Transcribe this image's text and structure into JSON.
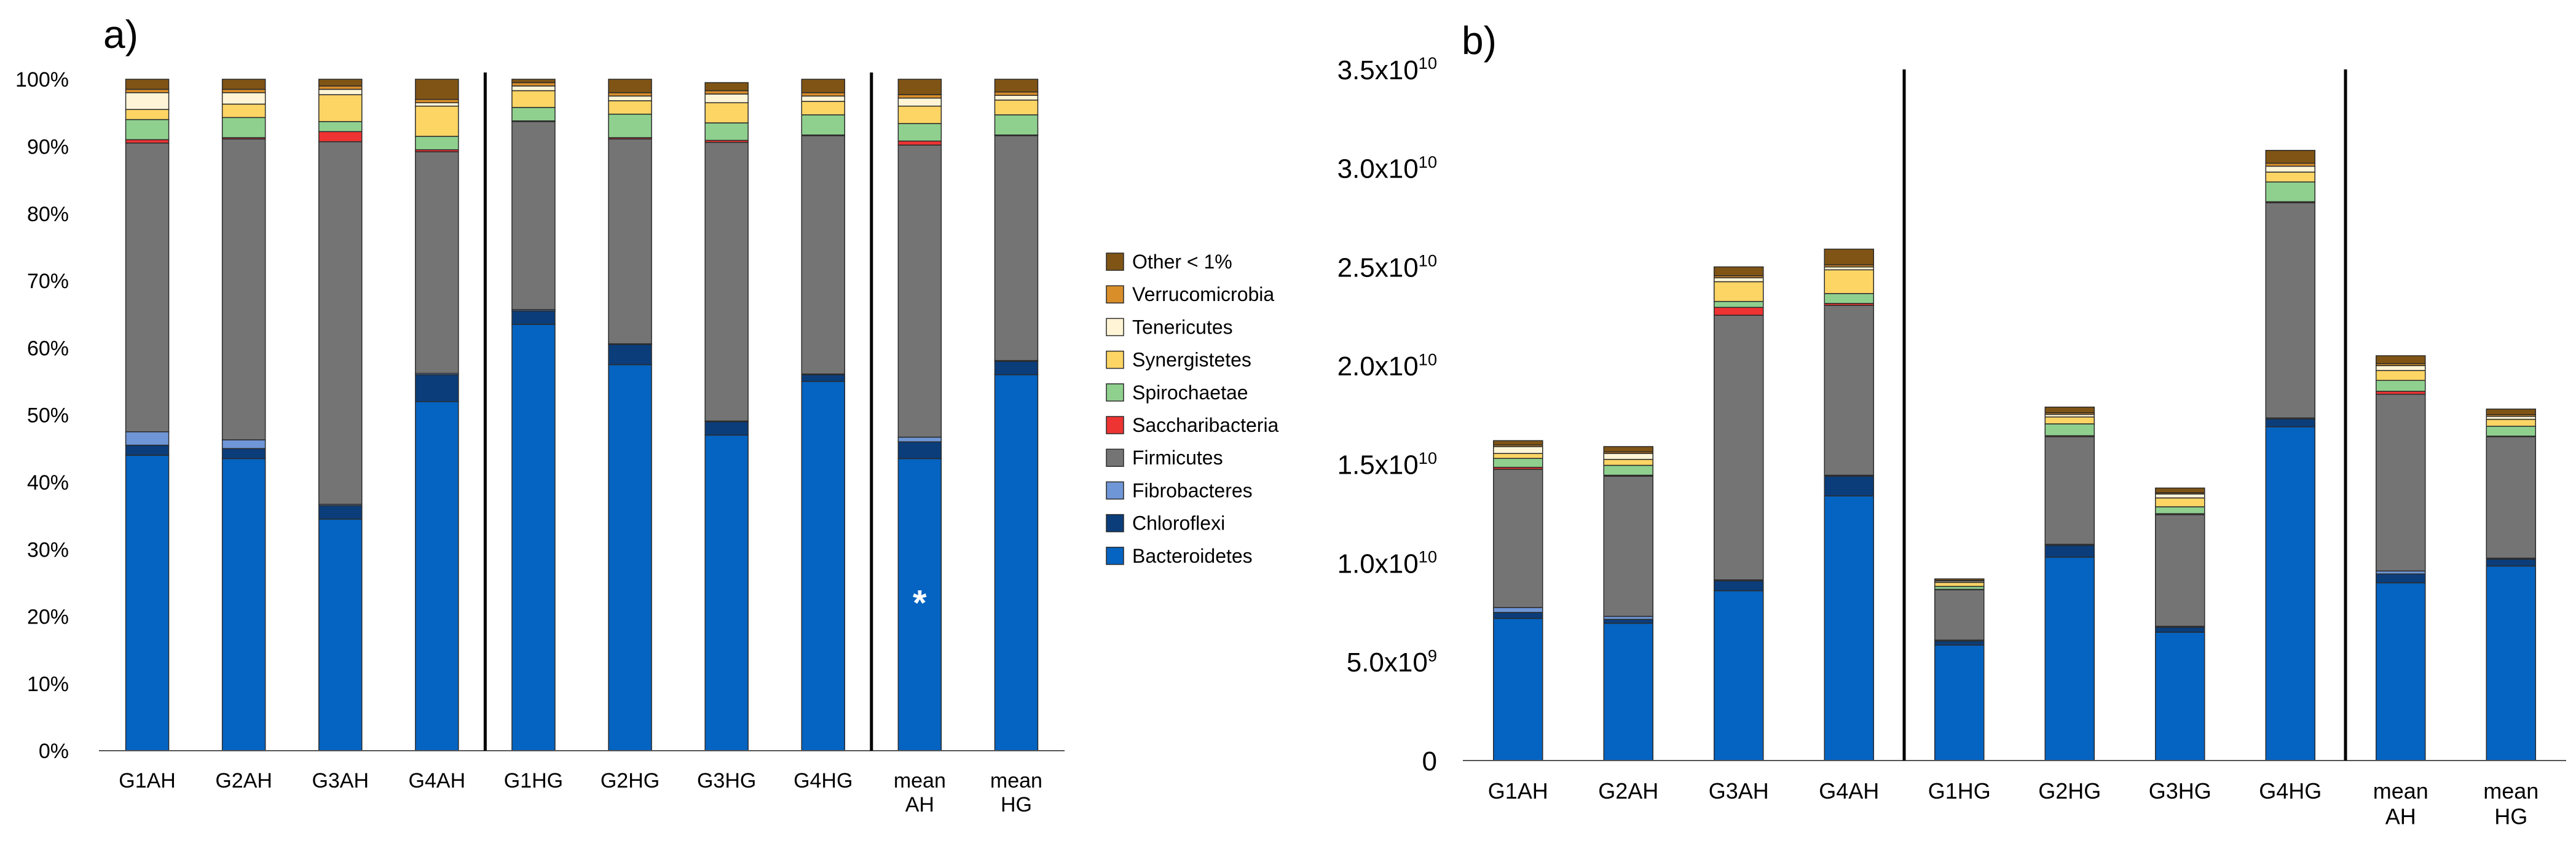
{
  "panel_labels": [
    "a)",
    "b)"
  ],
  "colors": {
    "Bacteroidetes": "#0563c1",
    "Chloroflexi": "#0b3d7a",
    "Fibrobacteres": "#6f96d6",
    "Firmicutes": "#747474",
    "Saccharibacteria": "#ee3333",
    "Spirochaetae": "#8fd08f",
    "Synergistetes": "#fdd565",
    "Tenericutes": "#fff5d6",
    "Verrucomicrobia": "#d98e2a",
    "Other < 1%": "#7f5415"
  },
  "chart_data": [
    {
      "panel": "a)",
      "type": "bar",
      "stacked": true,
      "categories": [
        "G1AH",
        "G2AH",
        "G3AH",
        "G4AH",
        "G1HG",
        "G2HG",
        "G3HG",
        "G4HG",
        "mean\nAH",
        "mean\nHG"
      ],
      "ylim": [
        0,
        100
      ],
      "yticks": [
        "0%",
        "10%",
        "20%",
        "30%",
        "40%",
        "50%",
        "60%",
        "70%",
        "80%",
        "90%",
        "100%"
      ],
      "group_dividers_after": [
        4,
        8
      ],
      "annotation": {
        "text": "*",
        "category": "mean\nAH",
        "value": 22
      },
      "series": [
        {
          "name": "Bacteroidetes",
          "values": [
            44,
            43.5,
            34.5,
            52,
            63.5,
            57.5,
            47,
            55,
            43.5,
            56
          ]
        },
        {
          "name": "Chloroflexi",
          "values": [
            1.5,
            1.5,
            2,
            4,
            2,
            3,
            2,
            1,
            2.5,
            2
          ]
        },
        {
          "name": "Fibrobacteres",
          "values": [
            2,
            1.3,
            0.2,
            0.2,
            0.2,
            0.1,
            0.1,
            0.1,
            0.7,
            0.1
          ]
        },
        {
          "name": "Firmicutes",
          "values": [
            43,
            44.8,
            54,
            33,
            28,
            30.5,
            41.5,
            35.5,
            43.5,
            33.5
          ]
        },
        {
          "name": "Saccharibacteria",
          "values": [
            0.5,
            0.2,
            1.5,
            0.3,
            0.1,
            0.2,
            0.3,
            0.1,
            0.6,
            0.1
          ]
        },
        {
          "name": "Spirochaetae",
          "values": [
            3,
            3,
            1.5,
            2,
            2,
            3.5,
            2.6,
            3,
            2.6,
            3
          ]
        },
        {
          "name": "Synergistetes",
          "values": [
            1.5,
            2,
            4,
            4.5,
            2.5,
            2,
            3,
            2,
            2.6,
            2.2
          ]
        },
        {
          "name": "Tenericutes",
          "values": [
            2.5,
            1.7,
            0.8,
            0.5,
            0.7,
            0.7,
            1.3,
            0.8,
            1.2,
            0.7
          ]
        },
        {
          "name": "Verrucomicrobia",
          "values": [
            0.5,
            0.5,
            0.5,
            0.5,
            0.5,
            0.5,
            0.5,
            0.5,
            0.5,
            0.5
          ]
        },
        {
          "name": "Other < 1%",
          "values": [
            1.5,
            1.5,
            1,
            3,
            0.5,
            2,
            1.2,
            2,
            2.3,
            1.9
          ]
        }
      ],
      "legend_order": [
        "Other < 1%",
        "Verrucomicrobia",
        "Tenericutes",
        "Synergistetes",
        "Spirochaetae",
        "Saccharibacteria",
        "Firmicutes",
        "Fibrobacteres",
        "Chloroflexi",
        "Bacteroidetes"
      ],
      "legend_labels": {
        "Other < 1%": "Other < 1%",
        "Verrucomicrobia": "Verrucomicrobia",
        "Tenericutes": "Tenericutes",
        "Synergistetes": "Synergistetes",
        "Spirochaetae": "Spirochaetae",
        "Saccharibacteria": "Saccharibacteria",
        "Firmicutes": "Firmicutes",
        "Fibrobacteres": "Fibrobacteres",
        "Chloroflexi": "Chloroflexi",
        "Bacteroidetes": "Bacteroidetes"
      },
      "legend_placement": "right"
    },
    {
      "panel": "b)",
      "type": "bar",
      "stacked": true,
      "categories": [
        "G1AH",
        "G2AH",
        "G3AH",
        "G4AH",
        "G1HG",
        "G2HG",
        "G3HG",
        "G4HG",
        "mean\nAH",
        "mean\nHG"
      ],
      "ylim": [
        0,
        35000000000
      ],
      "ytick_values": [
        0,
        5000000000,
        10000000000,
        15000000000,
        20000000000,
        25000000000,
        30000000000,
        35000000000
      ],
      "yticks": [
        {
          "mantissa": "0",
          "exp": ""
        },
        {
          "mantissa": "5.0x10",
          "exp": "9"
        },
        {
          "mantissa": "1.0x10",
          "exp": "10"
        },
        {
          "mantissa": "1.5x10",
          "exp": "10"
        },
        {
          "mantissa": "2.0x10",
          "exp": "10"
        },
        {
          "mantissa": "2.5x10",
          "exp": "10"
        },
        {
          "mantissa": "3.0x10",
          "exp": "10"
        },
        {
          "mantissa": "3.5x10",
          "exp": "10"
        }
      ],
      "group_dividers_after": [
        4,
        8
      ],
      "series": [
        {
          "name": "Bacteroidetes",
          "values": [
            7200000000,
            6950000000,
            8600000000,
            13400000000,
            5850000000,
            10300000000,
            6500000000,
            16900000000,
            9000000000,
            9850000000
          ]
        },
        {
          "name": "Chloroflexi",
          "values": [
            300000000,
            200000000,
            500000000,
            1000000000,
            200000000,
            600000000,
            250000000,
            400000000,
            450000000,
            350000000
          ]
        },
        {
          "name": "Fibrobacteres",
          "values": [
            250000000,
            150000000,
            50000000,
            50000000,
            50000000,
            50000000,
            50000000,
            50000000,
            150000000,
            50000000
          ]
        },
        {
          "name": "Firmicutes",
          "values": [
            7000000000,
            7100000000,
            13400000000,
            8600000000,
            2550000000,
            5450000000,
            5650000000,
            10900000000,
            8950000000,
            6150000000
          ]
        },
        {
          "name": "Saccharibacteria",
          "values": [
            100000000,
            50000000,
            400000000,
            100000000,
            20000000,
            50000000,
            50000000,
            50000000,
            150000000,
            30000000
          ]
        },
        {
          "name": "Spirochaetae",
          "values": [
            450000000,
            500000000,
            300000000,
            500000000,
            150000000,
            600000000,
            350000000,
            1000000000,
            550000000,
            500000000
          ]
        },
        {
          "name": "Synergistetes",
          "values": [
            250000000,
            300000000,
            1000000000,
            1200000000,
            200000000,
            350000000,
            450000000,
            500000000,
            500000000,
            350000000
          ]
        },
        {
          "name": "Tenericutes",
          "values": [
            350000000,
            300000000,
            200000000,
            150000000,
            70000000,
            130000000,
            200000000,
            300000000,
            250000000,
            150000000
          ]
        },
        {
          "name": "Verrucomicrobia",
          "values": [
            80000000,
            80000000,
            100000000,
            100000000,
            30000000,
            80000000,
            60000000,
            150000000,
            100000000,
            80000000
          ]
        },
        {
          "name": "Other < 1%",
          "values": [
            220000000,
            270000000,
            450000000,
            800000000,
            80000000,
            290000000,
            240000000,
            650000000,
            400000000,
            290000000
          ]
        }
      ]
    }
  ]
}
